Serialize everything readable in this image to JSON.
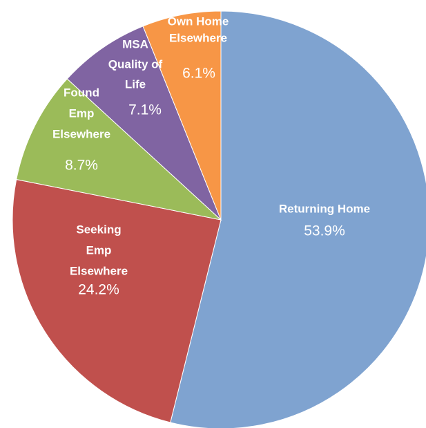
{
  "chart_data": {
    "type": "pie",
    "categories": [
      [
        "Returning Home"
      ],
      [
        "Seeking",
        "Emp",
        "Elsewhere"
      ],
      [
        "Found",
        "Emp",
        "Elsewhere"
      ],
      [
        "MSA",
        "Quality of",
        "Life"
      ],
      [
        "Own Home",
        "Elsewhere"
      ]
    ],
    "values": [
      53.9,
      24.2,
      8.7,
      7.1,
      6.1
    ],
    "value_labels": [
      "53.9%",
      "24.2%",
      "8.7%",
      "7.1%",
      "6.1%"
    ],
    "colors": [
      "#7fa3d0",
      "#c0504d",
      "#9bbb59",
      "#8064a2",
      "#f79646"
    ]
  }
}
